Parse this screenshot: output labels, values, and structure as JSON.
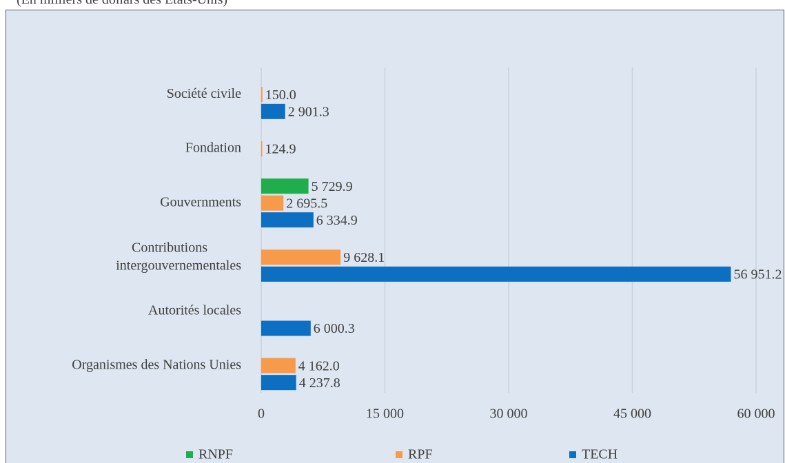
{
  "chart_data": {
    "type": "hbar",
    "subtitle": "(En milliers de dollars des États-Unis)",
    "categories": [
      "Société civile",
      "Fondation",
      "Gouvernments",
      "Contributions intergouvernementales",
      "Autorités locales",
      "Organismes des Nations Unies"
    ],
    "series": [
      {
        "name": "RNPF",
        "color": "#1fae4b",
        "values": [
          null,
          null,
          5729.9,
          null,
          null,
          null
        ],
        "value_labels": [
          null,
          null,
          "5 729.9",
          null,
          null,
          null
        ]
      },
      {
        "name": "RPF",
        "color": "#f79a4a",
        "values": [
          150.0,
          124.9,
          2695.5,
          9628.1,
          null,
          4162.0
        ],
        "value_labels": [
          "150.0",
          "124.9",
          "2 695.5",
          "9 628.1",
          null,
          "4 162.0"
        ]
      },
      {
        "name": "TECH",
        "color": "#0c6fc1",
        "values": [
          2901.3,
          null,
          6334.9,
          56951.2,
          6000.3,
          4237.8
        ],
        "value_labels": [
          "2 901.3",
          null,
          "6 334.9",
          "56 951.2",
          "6 000.3",
          "4 237.8"
        ]
      }
    ],
    "xlim": [
      0,
      60000
    ],
    "xticks": [
      0,
      {
        "value": 15000,
        "label": "15 000"
      },
      {
        "value": 30000,
        "label": "30 000"
      },
      {
        "value": 45000,
        "label": "45 000"
      },
      {
        "value": 60000,
        "label": "60 000"
      }
    ],
    "grid": true,
    "legend": "bottom"
  }
}
